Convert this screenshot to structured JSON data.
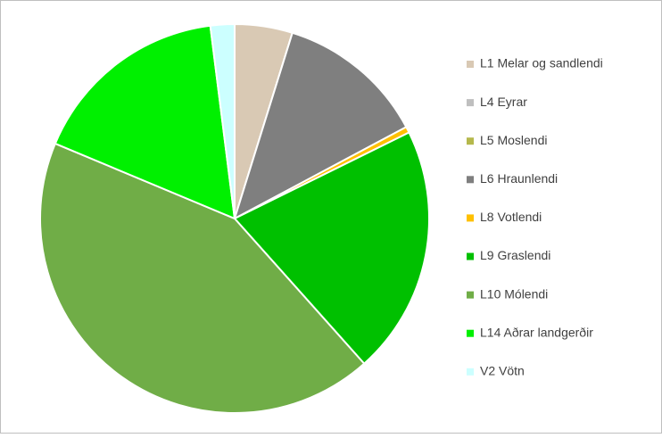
{
  "chart_data": {
    "type": "pie",
    "categories": [
      "L1 Melar og sandlendi",
      "L4 Eyrar",
      "L5 Moslendi",
      "L6 Hraunlendi",
      "L8 Votlendi",
      "L9 Graslendi",
      "L10 Mólendi",
      "L14 Aðrar landgerðir",
      "V2 Vötn"
    ],
    "values": [
      4.8,
      0,
      0,
      12.4,
      0.5,
      20.7,
      42.9,
      16.7,
      2.0
    ],
    "colors": [
      "#d9c9b4",
      "#bfbfbf",
      "#b5b84c",
      "#7f7f7f",
      "#ffc000",
      "#00c000",
      "#70ad47",
      "#00f000",
      "#ccffff"
    ],
    "legend": "right"
  }
}
